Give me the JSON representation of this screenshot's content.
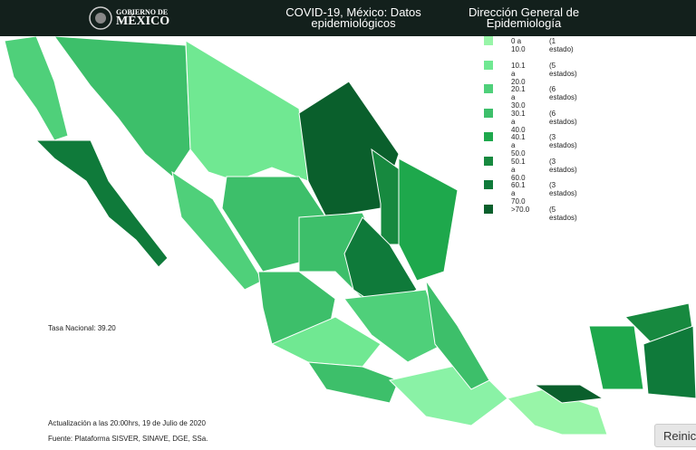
{
  "header": {
    "logo_top": "GOBIERNO DE",
    "logo_bottom": "MÉXICO",
    "title": "COVID-19, México: Datos epidemiológicos",
    "agency": "Dirección General de Epidemiología"
  },
  "legend": [
    {
      "range": "0 a 10.0",
      "count": "(1 estado)",
      "color": "#98f5a8"
    },
    {
      "range": "10.1 a 20.0",
      "count": "(5 estados)",
      "color": "#70e892"
    },
    {
      "range": "20.1 a 30.0",
      "count": "(6 estados)",
      "color": "#4fd07a"
    },
    {
      "range": "30.1 a 40.0",
      "count": "(6 estados)",
      "color": "#3dbf6a"
    },
    {
      "range": "40.1 a 50.0",
      "count": "(3 estados)",
      "color": "#1ea84c"
    },
    {
      "range": "50.1 a 60.0",
      "count": "(3 estados)",
      "color": "#17893f"
    },
    {
      "range": "60.1 a 70.0",
      "count": "(3 estados)",
      "color": "#0f7a3a"
    },
    {
      "range": ">70.0",
      "count": "(5 estados)",
      "color": "#0a5f2c"
    }
  ],
  "national_rate": "Tasa Nacional: 39.20",
  "updated": "Actualización a las 20:00hrs, 19 de Julio de 2020",
  "source": "Fuente: Plataforma SISVER, SINAVE, DGE, SSa.",
  "reset_button": "Reinic"
}
